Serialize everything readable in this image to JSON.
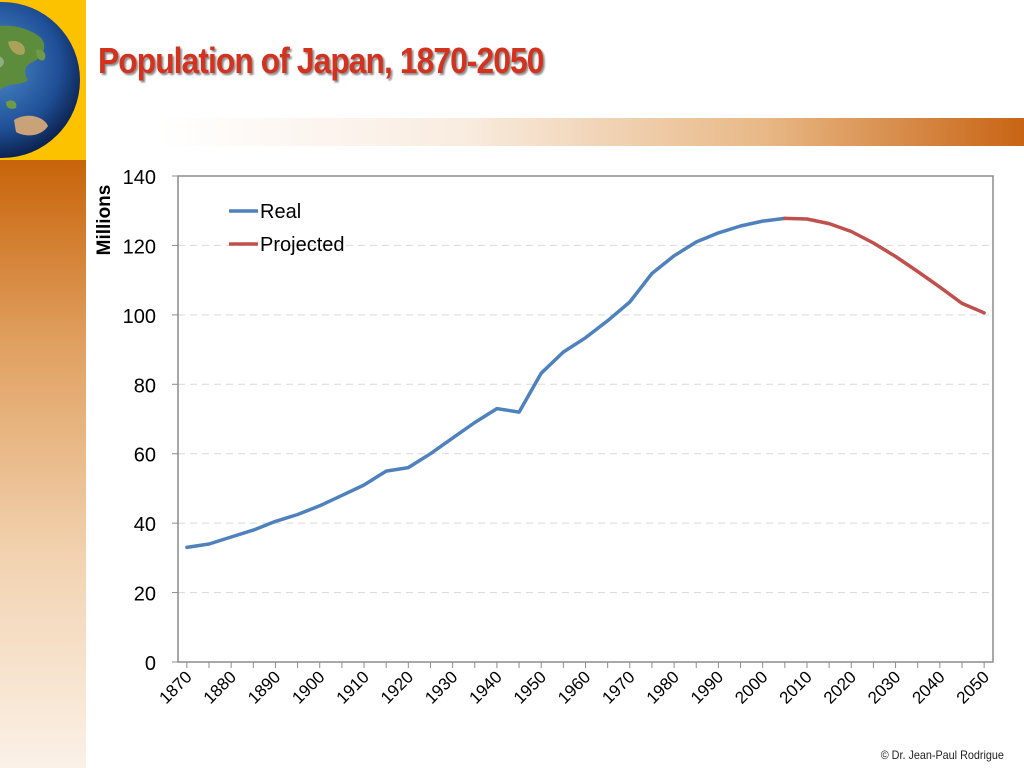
{
  "slide": {
    "title": "Population of Japan, 1870-2050",
    "credit": "© Dr. Jean-Paul Rodrigue"
  },
  "colors": {
    "real": "#4f81bd",
    "projected": "#c0504d",
    "title": "#d2321e",
    "accent_orange": "#c8640a",
    "accent_yellow": "#fcc200"
  },
  "icons": {
    "logo": "globe-icon"
  },
  "chart_data": {
    "type": "line",
    "title": "",
    "xlabel": "",
    "ylabel": "Millions",
    "ylim": [
      0,
      140
    ],
    "yticks": [
      0,
      20,
      40,
      60,
      80,
      100,
      120,
      140
    ],
    "xlim": [
      1868,
      2052
    ],
    "xticks": [
      1870,
      1880,
      1890,
      1900,
      1910,
      1920,
      1930,
      1940,
      1950,
      1960,
      1970,
      1980,
      1990,
      2000,
      2010,
      2020,
      2030,
      2040,
      2050
    ],
    "grid": "horizontal dashed",
    "legend_position": "top-left",
    "series": [
      {
        "name": "Real",
        "x": [
          1870,
          1875,
          1880,
          1885,
          1890,
          1895,
          1900,
          1905,
          1910,
          1915,
          1920,
          1925,
          1930,
          1935,
          1940,
          1945,
          1950,
          1955,
          1960,
          1965,
          1970,
          1975,
          1980,
          1985,
          1990,
          1995,
          2000,
          2005
        ],
        "values": [
          33,
          34,
          36,
          38,
          40.5,
          42.5,
          45,
          48,
          51,
          55,
          56,
          60,
          64.5,
          69,
          73,
          72,
          83.2,
          89.3,
          93.4,
          98.3,
          103.7,
          111.9,
          117,
          121,
          123.6,
          125.6,
          127,
          127.8
        ]
      },
      {
        "name": "Projected",
        "x": [
          2005,
          2010,
          2015,
          2020,
          2025,
          2030,
          2035,
          2040,
          2045,
          2050
        ],
        "values": [
          127.8,
          127.6,
          126.3,
          124,
          120.7,
          116.8,
          112.5,
          108,
          103.3,
          100.6
        ]
      }
    ]
  }
}
